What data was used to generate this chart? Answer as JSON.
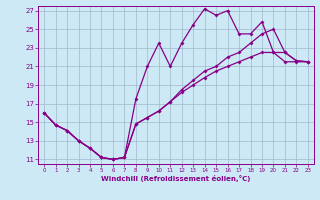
{
  "xlabel": "Windchill (Refroidissement éolien,°C)",
  "bg_color": "#cce9f5",
  "grid_color": "#a0b8cc",
  "line_color": "#880088",
  "xlim": [
    -0.5,
    23.5
  ],
  "ylim": [
    10.5,
    27.5
  ],
  "xticks": [
    0,
    1,
    2,
    3,
    4,
    5,
    6,
    7,
    8,
    9,
    10,
    11,
    12,
    13,
    14,
    15,
    16,
    17,
    18,
    19,
    20,
    21,
    22,
    23
  ],
  "yticks": [
    11,
    13,
    15,
    17,
    19,
    21,
    23,
    25,
    27
  ],
  "line1_x": [
    0,
    1,
    2,
    3,
    4,
    5,
    6,
    7,
    8,
    9,
    10,
    11,
    12,
    13,
    14,
    15,
    16,
    17,
    18,
    19,
    20,
    21,
    22,
    23
  ],
  "line1_y": [
    16.0,
    14.7,
    14.1,
    13.0,
    12.2,
    11.2,
    11.0,
    11.2,
    17.5,
    21.0,
    23.5,
    21.0,
    23.5,
    25.5,
    27.2,
    26.5,
    27.0,
    24.5,
    24.5,
    25.8,
    22.5,
    22.5,
    21.6,
    21.5
  ],
  "line2_x": [
    0,
    1,
    2,
    3,
    4,
    5,
    6,
    7,
    8,
    9,
    10,
    11,
    12,
    13,
    14,
    15,
    16,
    17,
    18,
    19,
    20,
    21,
    22,
    23
  ],
  "line2_y": [
    16.0,
    14.7,
    14.1,
    13.0,
    12.2,
    11.2,
    11.0,
    11.2,
    14.8,
    15.5,
    16.2,
    17.2,
    18.5,
    19.5,
    20.5,
    21.0,
    22.0,
    22.5,
    23.5,
    24.5,
    25.0,
    22.5,
    21.6,
    21.5
  ],
  "line3_x": [
    0,
    1,
    2,
    3,
    4,
    5,
    6,
    7,
    8,
    9,
    10,
    11,
    12,
    13,
    14,
    15,
    16,
    17,
    18,
    19,
    20,
    21,
    22,
    23
  ],
  "line3_y": [
    16.0,
    14.7,
    14.1,
    13.0,
    12.2,
    11.2,
    11.0,
    11.2,
    14.8,
    15.5,
    16.2,
    17.2,
    18.2,
    19.0,
    19.8,
    20.5,
    21.0,
    21.5,
    22.0,
    22.5,
    22.5,
    21.5,
    21.5,
    21.5
  ]
}
